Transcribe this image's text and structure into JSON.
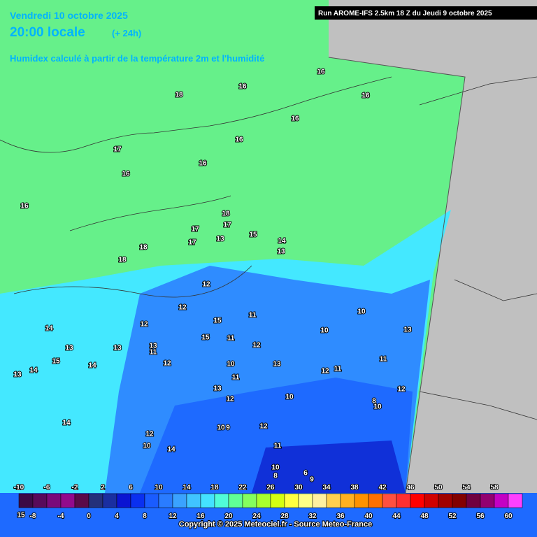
{
  "header": {
    "date_line": "Vendredi 10 octobre 2025",
    "time_line": "20:00 locale",
    "offset": "(+ 24h)",
    "subtitle": "Humidex calculé à partir de la température 2m et l'humidité",
    "run_info": "Run AROME-IFS 2.5km 18 Z du Jeudi 9 octobre 2025"
  },
  "contour_labels": [
    "16",
    "16",
    "18",
    "16",
    "16",
    "16",
    "17",
    "16",
    "16",
    "16",
    "18",
    "17",
    "17",
    "15",
    "17",
    "13",
    "18",
    "14",
    "13",
    "18",
    "12",
    "12",
    "10",
    "11",
    "15",
    "12",
    "14",
    "10",
    "13",
    "11",
    "15",
    "13",
    "13",
    "13",
    "11",
    "12",
    "11",
    "15",
    "14",
    "12",
    "10",
    "13",
    "12",
    "11",
    "14",
    "13",
    "11",
    "13",
    "12",
    "12",
    "10",
    "8",
    "10",
    "14",
    "10",
    "9",
    "12",
    "12",
    "10",
    "14",
    "11",
    "10",
    "8",
    "6",
    "9",
    "15"
  ],
  "scale": {
    "top_labels": [
      -10,
      -6,
      -2,
      2,
      6,
      10,
      14,
      18,
      22,
      26,
      30,
      34,
      38,
      42,
      46,
      50,
      54,
      58
    ],
    "bottom_labels": [
      -8,
      -4,
      0,
      4,
      8,
      12,
      16,
      20,
      24,
      28,
      32,
      36,
      40,
      44,
      48,
      52,
      56,
      60
    ],
    "colors": [
      "#3c0a46",
      "#580a5a",
      "#7a0a7a",
      "#920a8c",
      "#5a0a48",
      "#24307a",
      "#1a2ea0",
      "#0a14d2",
      "#0a30f0",
      "#1a5cff",
      "#2a7cff",
      "#3aa2ff",
      "#40c4ff",
      "#44e2ff",
      "#50fcd8",
      "#60ff96",
      "#84ff5e",
      "#a8ff2e",
      "#d4ff10",
      "#ffff40",
      "#ffff86",
      "#fff0a0",
      "#ffd050",
      "#ffb020",
      "#ff9200",
      "#ff7000",
      "#ff5040",
      "#ff3030",
      "#ff0000",
      "#d00000",
      "#a00000",
      "#820000",
      "#700040",
      "#920070",
      "#c400c4",
      "#ff40ff"
    ]
  },
  "copyright": "Copyright © 2025 Meteociel.fr - Source Meteo-France"
}
